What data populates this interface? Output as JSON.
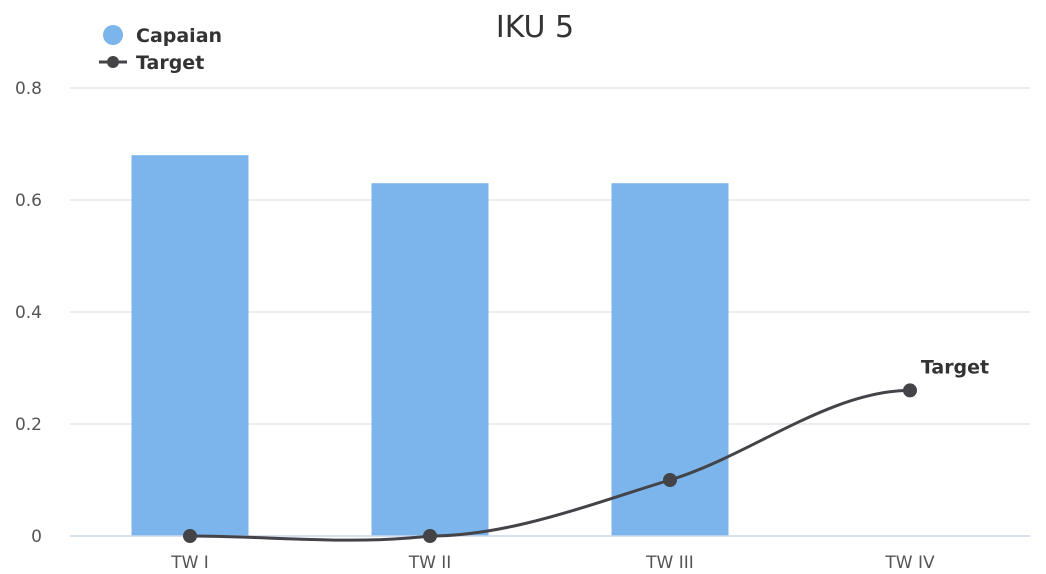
{
  "chart_data": {
    "type": "bar",
    "title": "IKU 5",
    "categories": [
      "TW I",
      "TW II",
      "TW III",
      "TW IV"
    ],
    "series": [
      {
        "name": "Capaian",
        "type": "bar",
        "values": [
          0.68,
          0.63,
          0.63,
          null
        ]
      },
      {
        "name": "Target",
        "type": "line",
        "values": [
          0,
          0,
          0.1,
          0.26
        ]
      }
    ],
    "ylim": [
      0,
      0.8
    ],
    "yticks": [
      "0",
      "0.2",
      "0.4",
      "0.6",
      "0.8"
    ],
    "grid": true,
    "legend": "top-left",
    "annotation": "Target",
    "colors": {
      "bar": "#7cb5ec",
      "line": "#434348",
      "grid": "#e6e6e6",
      "axis": "#ccd6eb"
    }
  }
}
